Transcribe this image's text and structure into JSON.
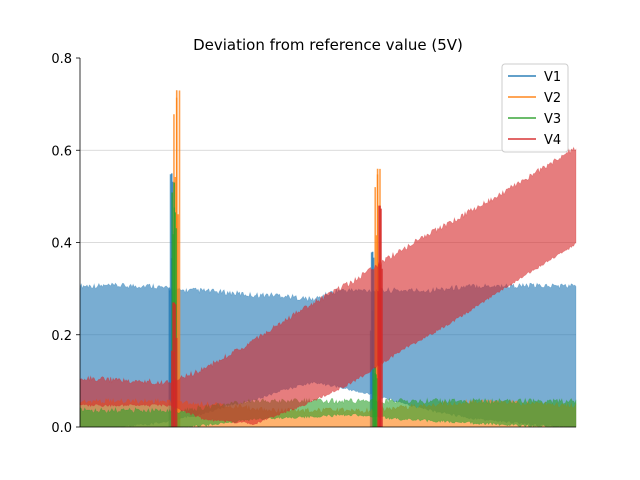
{
  "chart_data": {
    "type": "area",
    "title": "Deviation from reference value (5V)",
    "xlabel": "",
    "ylabel": "",
    "xlim": [
      0,
      1
    ],
    "ylim": [
      0,
      0.8
    ],
    "yticks": [
      "0.0",
      "0.2",
      "0.4",
      "0.6",
      "0.8"
    ],
    "grid": "horizontal",
    "legend_position": "top-right",
    "series": [
      {
        "name": "V1",
        "color": "#1f77b4",
        "bands": [
          [
            0.0,
            0.0,
            0.3
          ],
          [
            0.05,
            0.0,
            0.3
          ],
          [
            0.15,
            0.01,
            0.3
          ],
          [
            0.19,
            0.02,
            0.29
          ],
          [
            0.24,
            0.03,
            0.29
          ],
          [
            0.3,
            0.05,
            0.285
          ],
          [
            0.35,
            0.06,
            0.28
          ],
          [
            0.4,
            0.08,
            0.28
          ],
          [
            0.47,
            0.1,
            0.27
          ],
          [
            0.52,
            0.09,
            0.29
          ],
          [
            0.6,
            0.07,
            0.29
          ],
          [
            0.7,
            0.04,
            0.29
          ],
          [
            0.8,
            0.02,
            0.3
          ],
          [
            0.9,
            0.01,
            0.3
          ],
          [
            1.0,
            0.0,
            0.3
          ]
        ],
        "spikes": [
          {
            "x": 0.185,
            "width": 0.012,
            "y": 0.55
          },
          {
            "x": 0.59,
            "width": 0.01,
            "y": 0.38
          }
        ]
      },
      {
        "name": "V2",
        "color": "#ff7f0e",
        "bands": [
          [
            0.0,
            0.0,
            0.05
          ],
          [
            0.18,
            0.0,
            0.05
          ],
          [
            0.4,
            0.0,
            0.03
          ],
          [
            0.58,
            0.0,
            0.03
          ],
          [
            0.8,
            0.0,
            0.05
          ],
          [
            1.0,
            0.0,
            0.04
          ]
        ],
        "spikes": [
          {
            "x": 0.195,
            "width": 0.014,
            "y": 0.73
          },
          {
            "x": 0.6,
            "width": 0.012,
            "y": 0.56
          }
        ]
      },
      {
        "name": "V3",
        "color": "#2ca02c",
        "bands": [
          [
            0.0,
            0.0,
            0.03
          ],
          [
            0.2,
            0.0,
            0.03
          ],
          [
            0.35,
            0.02,
            0.05
          ],
          [
            0.55,
            0.03,
            0.05
          ],
          [
            0.65,
            0.02,
            0.05
          ],
          [
            1.0,
            0.0,
            0.05
          ]
        ],
        "spikes": [
          {
            "x": 0.19,
            "width": 0.01,
            "y": 0.53
          },
          {
            "x": 0.595,
            "width": 0.01,
            "y": 0.13
          }
        ]
      },
      {
        "name": "V4",
        "color": "#d62728",
        "bands": [
          [
            0.0,
            0.05,
            0.1
          ],
          [
            0.18,
            0.05,
            0.09
          ],
          [
            0.25,
            0.02,
            0.12
          ],
          [
            0.35,
            0.01,
            0.18
          ],
          [
            0.45,
            0.05,
            0.25
          ],
          [
            0.55,
            0.1,
            0.31
          ],
          [
            0.65,
            0.17,
            0.38
          ],
          [
            0.75,
            0.23,
            0.44
          ],
          [
            0.85,
            0.3,
            0.5
          ],
          [
            1.0,
            0.4,
            0.6
          ]
        ],
        "spikes": [
          {
            "x": 0.19,
            "width": 0.012,
            "y": 0.27
          },
          {
            "x": 0.605,
            "width": 0.01,
            "y": 0.48
          }
        ]
      }
    ]
  }
}
